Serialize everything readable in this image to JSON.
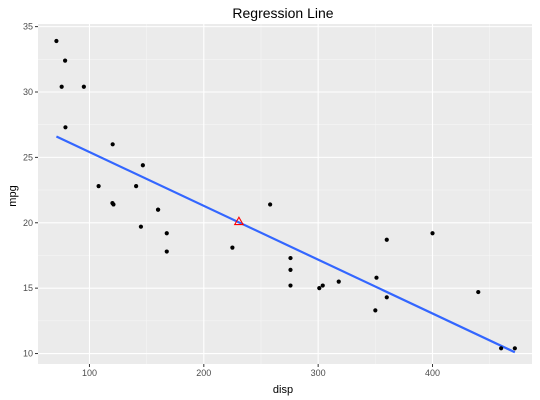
{
  "chart_data": {
    "type": "scatter",
    "title": "Regression Line",
    "xlabel": "disp",
    "ylabel": "mpg",
    "xlim": [
      55,
      487
    ],
    "ylim": [
      9.2,
      35.2
    ],
    "x_ticks": [
      100,
      200,
      300,
      400
    ],
    "y_ticks": [
      10,
      15,
      20,
      25,
      30,
      35
    ],
    "grid": true,
    "legend": "none",
    "points": [
      {
        "x": 71.1,
        "y": 33.9
      },
      {
        "x": 75.7,
        "y": 30.4
      },
      {
        "x": 78.7,
        "y": 32.4
      },
      {
        "x": 79.0,
        "y": 27.3
      },
      {
        "x": 95.1,
        "y": 30.4
      },
      {
        "x": 108.0,
        "y": 22.8
      },
      {
        "x": 120.1,
        "y": 21.5
      },
      {
        "x": 120.3,
        "y": 26.0
      },
      {
        "x": 121.0,
        "y": 21.4
      },
      {
        "x": 140.8,
        "y": 22.8
      },
      {
        "x": 145.0,
        "y": 19.7
      },
      {
        "x": 146.7,
        "y": 24.4
      },
      {
        "x": 160.0,
        "y": 21.0
      },
      {
        "x": 160.0,
        "y": 21.0
      },
      {
        "x": 167.6,
        "y": 19.2
      },
      {
        "x": 167.6,
        "y": 17.8
      },
      {
        "x": 225.0,
        "y": 18.1
      },
      {
        "x": 258.0,
        "y": 21.4
      },
      {
        "x": 275.8,
        "y": 16.4
      },
      {
        "x": 275.8,
        "y": 17.3
      },
      {
        "x": 275.8,
        "y": 15.2
      },
      {
        "x": 301.0,
        "y": 15.0
      },
      {
        "x": 304.0,
        "y": 15.2
      },
      {
        "x": 318.0,
        "y": 15.5
      },
      {
        "x": 350.0,
        "y": 13.3
      },
      {
        "x": 351.0,
        "y": 15.8
      },
      {
        "x": 360.0,
        "y": 18.7
      },
      {
        "x": 360.0,
        "y": 14.3
      },
      {
        "x": 400.0,
        "y": 19.2
      },
      {
        "x": 440.0,
        "y": 14.7
      },
      {
        "x": 460.0,
        "y": 10.4
      },
      {
        "x": 472.0,
        "y": 10.4
      }
    ],
    "regression_line": {
      "x": [
        71.1,
        472.0
      ],
      "y": [
        26.6,
        10.1
      ],
      "color": "#3366FF"
    },
    "mean_marker": {
      "x": 230.7,
      "y": 20.1,
      "shape": "triangle",
      "color": "#FF0000"
    },
    "colors": {
      "panel": "#EBEBEB",
      "grid_major": "#FFFFFF",
      "point": "#000000"
    }
  }
}
